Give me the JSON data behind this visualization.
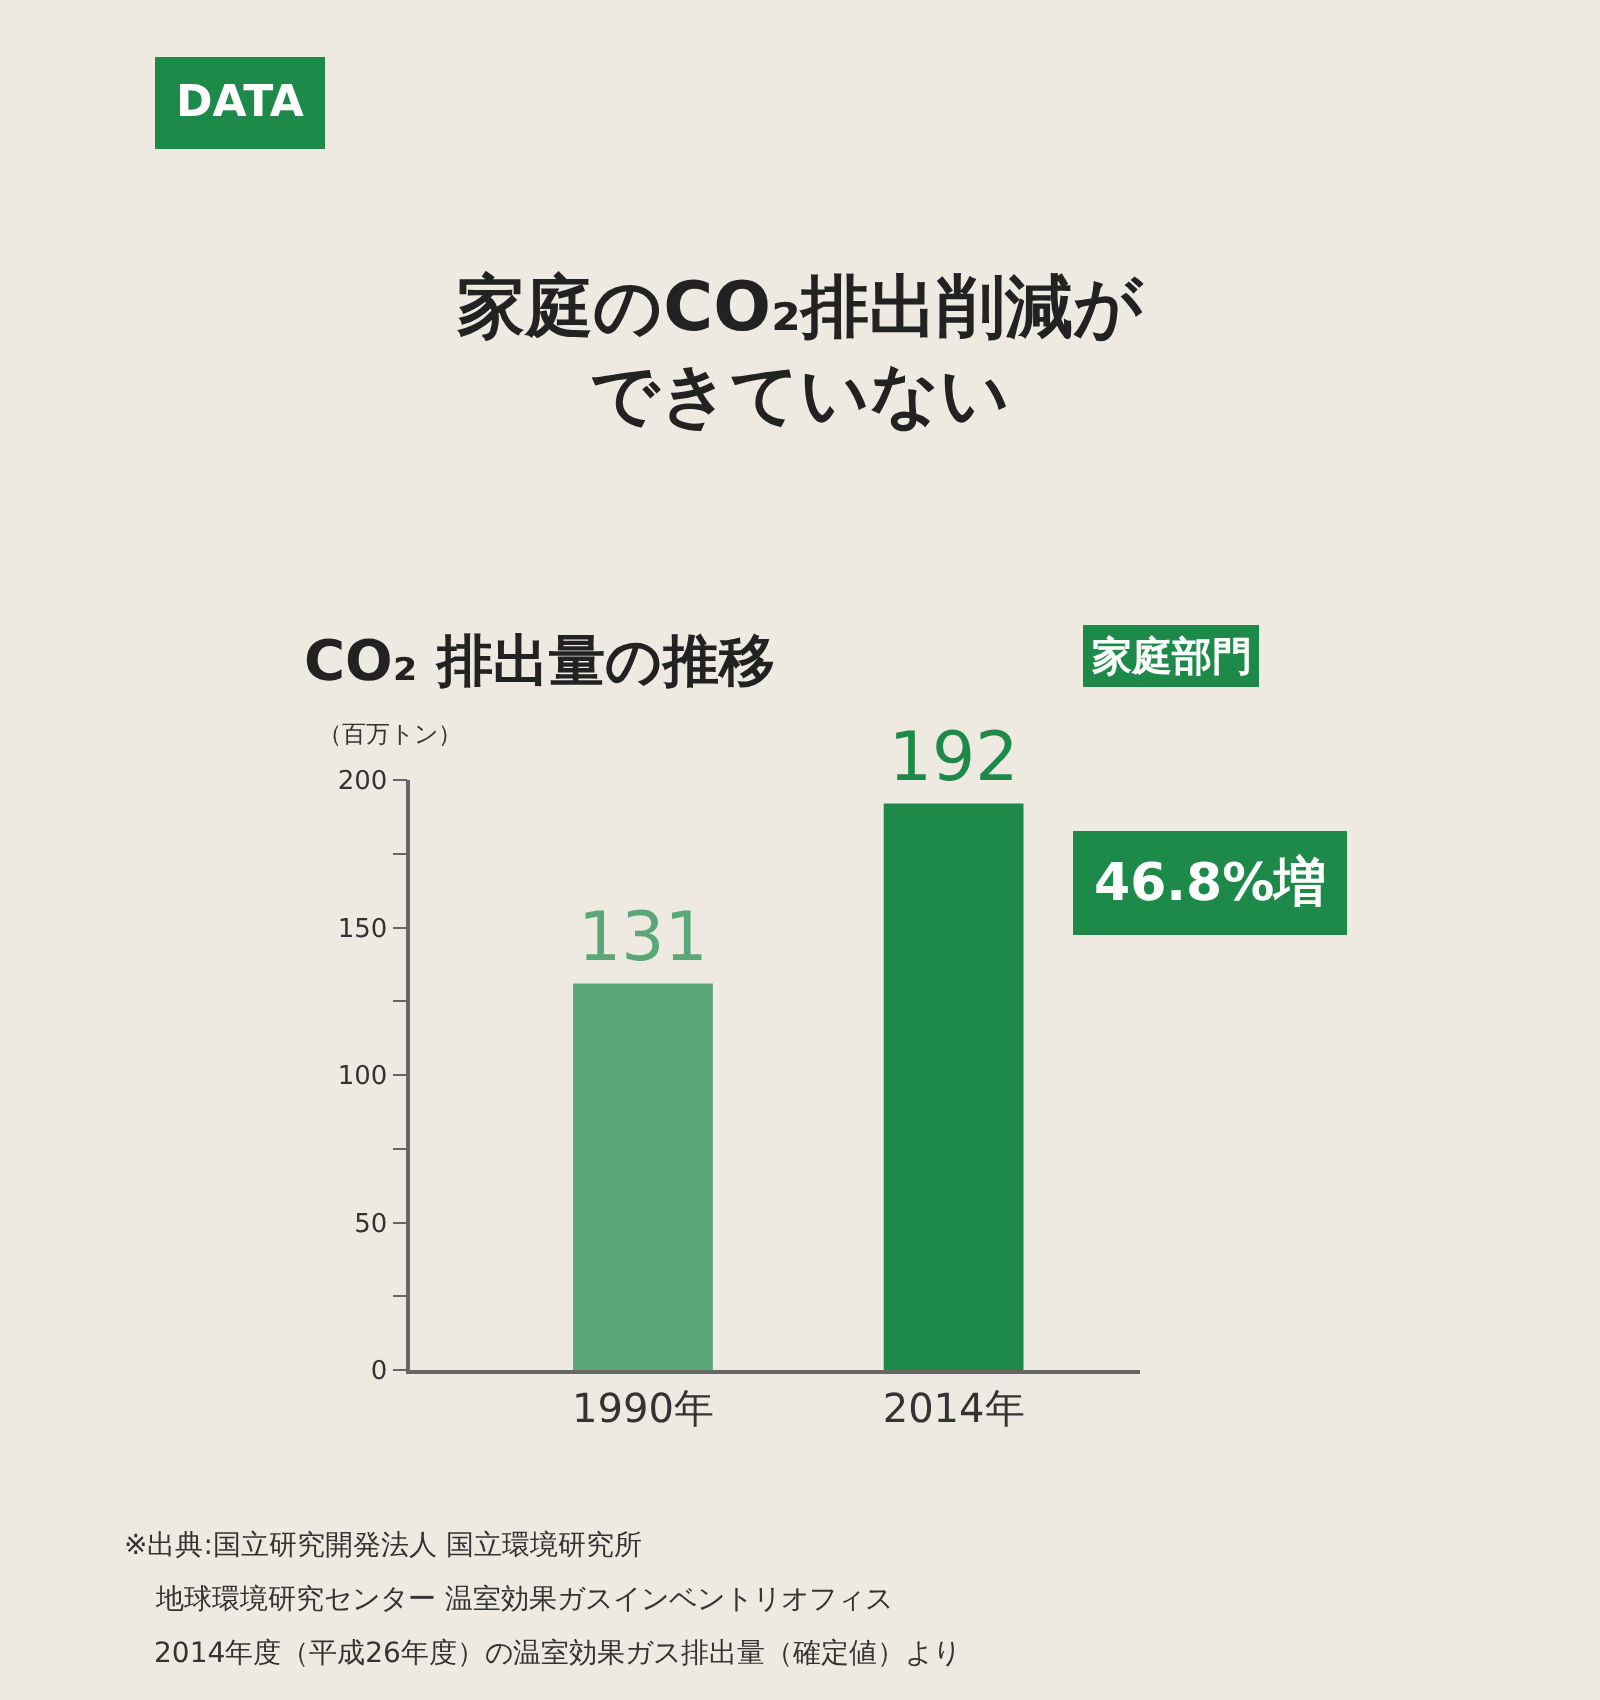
{
  "chart_data": {
    "type": "bar",
    "title": "家庭のCO₂排出削減ができていない",
    "subtitle": "CO₂ 排出量の推移",
    "ylabel": "（百万トン）",
    "categories": [
      "1990年",
      "2014年"
    ],
    "values": [
      131,
      192
    ],
    "colors": [
      "#5aa878",
      "#1d8a4a"
    ],
    "data_labels": true,
    "ylim": [
      0,
      200
    ],
    "yticks": [
      0,
      {
        "value": 25,
        "label": null
      },
      50,
      {
        "value": 75,
        "label": null
      },
      100,
      {
        "value": 125,
        "label": null
      },
      150,
      {
        "value": 175,
        "label": null
      },
      200
    ],
    "grid": false,
    "annotations": [
      "DATA",
      "家庭部門",
      "46.8%増",
      "※出典:国立研究開発法人 国立環境研究所",
      "地球環境研究センター 温室効果ガスインベントリオフィス",
      "2014年度（平成26年度）の温室効果ガス排出量（確定値）より"
    ]
  }
}
